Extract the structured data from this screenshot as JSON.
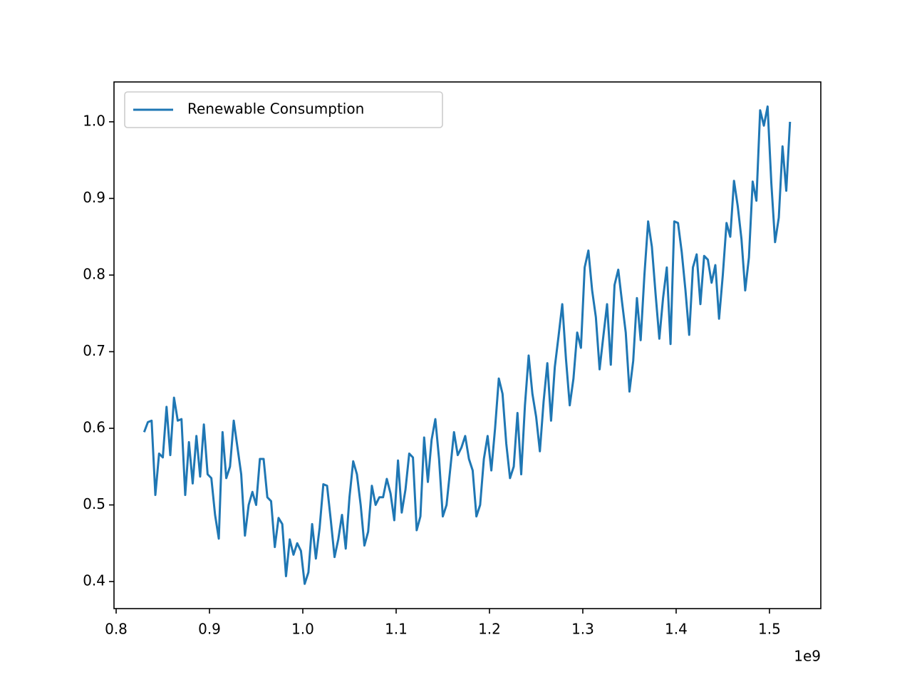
{
  "chart_data": {
    "type": "line",
    "x_offset_label": "1e9",
    "x": [
      0.83,
      0.834,
      0.838,
      0.842,
      0.846,
      0.85,
      0.854,
      0.858,
      0.862,
      0.866,
      0.87,
      0.874,
      0.878,
      0.882,
      0.886,
      0.89,
      0.894,
      0.898,
      0.902,
      0.906,
      0.91,
      0.914,
      0.918,
      0.922,
      0.926,
      0.93,
      0.934,
      0.938,
      0.942,
      0.946,
      0.95,
      0.954,
      0.958,
      0.962,
      0.966,
      0.97,
      0.974,
      0.978,
      0.982,
      0.986,
      0.99,
      0.994,
      0.998,
      1.002,
      1.006,
      1.01,
      1.014,
      1.018,
      1.022,
      1.026,
      1.03,
      1.034,
      1.038,
      1.042,
      1.046,
      1.05,
      1.054,
      1.058,
      1.062,
      1.066,
      1.07,
      1.074,
      1.078,
      1.082,
      1.086,
      1.09,
      1.094,
      1.098,
      1.102,
      1.106,
      1.11,
      1.114,
      1.118,
      1.122,
      1.126,
      1.13,
      1.134,
      1.138,
      1.142,
      1.146,
      1.15,
      1.154,
      1.158,
      1.162,
      1.166,
      1.17,
      1.174,
      1.178,
      1.182,
      1.186,
      1.19,
      1.194,
      1.198,
      1.202,
      1.206,
      1.21,
      1.214,
      1.218,
      1.222,
      1.226,
      1.23,
      1.234,
      1.238,
      1.242,
      1.246,
      1.25,
      1.254,
      1.258,
      1.262,
      1.266,
      1.27,
      1.274,
      1.278,
      1.282,
      1.286,
      1.29,
      1.294,
      1.298,
      1.302,
      1.306,
      1.31,
      1.314,
      1.318,
      1.322,
      1.326,
      1.33,
      1.334,
      1.338,
      1.342,
      1.346,
      1.35,
      1.354,
      1.358,
      1.362,
      1.366,
      1.37,
      1.374,
      1.378,
      1.382,
      1.386,
      1.39,
      1.394,
      1.398,
      1.402,
      1.406,
      1.41,
      1.414,
      1.418,
      1.422,
      1.426,
      1.43,
      1.434,
      1.438,
      1.442,
      1.446,
      1.45,
      1.454,
      1.458,
      1.462,
      1.466,
      1.47,
      1.474,
      1.478,
      1.482,
      1.486,
      1.49,
      1.494,
      1.498,
      1.502,
      1.506,
      1.51,
      1.514,
      1.518,
      1.522
    ],
    "series": [
      {
        "name": "Renewable Consumption",
        "color": "#1f77b4",
        "values": [
          0.595,
          0.608,
          0.61,
          0.513,
          0.567,
          0.562,
          0.628,
          0.565,
          0.64,
          0.61,
          0.612,
          0.513,
          0.582,
          0.528,
          0.59,
          0.537,
          0.605,
          0.54,
          0.535,
          0.487,
          0.456,
          0.595,
          0.535,
          0.55,
          0.61,
          0.575,
          0.54,
          0.46,
          0.5,
          0.517,
          0.5,
          0.56,
          0.56,
          0.51,
          0.505,
          0.445,
          0.483,
          0.475,
          0.407,
          0.455,
          0.435,
          0.45,
          0.44,
          0.397,
          0.412,
          0.475,
          0.43,
          0.47,
          0.527,
          0.525,
          0.48,
          0.432,
          0.455,
          0.487,
          0.443,
          0.51,
          0.557,
          0.54,
          0.5,
          0.447,
          0.465,
          0.525,
          0.5,
          0.51,
          0.51,
          0.534,
          0.515,
          0.48,
          0.558,
          0.49,
          0.52,
          0.567,
          0.562,
          0.467,
          0.485,
          0.588,
          0.53,
          0.585,
          0.612,
          0.56,
          0.485,
          0.5,
          0.547,
          0.595,
          0.565,
          0.575,
          0.59,
          0.56,
          0.545,
          0.485,
          0.5,
          0.56,
          0.59,
          0.545,
          0.6,
          0.665,
          0.645,
          0.58,
          0.535,
          0.55,
          0.62,
          0.54,
          0.63,
          0.695,
          0.645,
          0.615,
          0.57,
          0.635,
          0.685,
          0.61,
          0.68,
          0.72,
          0.762,
          0.69,
          0.63,
          0.665,
          0.725,
          0.705,
          0.81,
          0.832,
          0.78,
          0.745,
          0.677,
          0.72,
          0.762,
          0.683,
          0.787,
          0.807,
          0.765,
          0.725,
          0.648,
          0.688,
          0.77,
          0.715,
          0.8,
          0.87,
          0.837,
          0.775,
          0.717,
          0.77,
          0.81,
          0.71,
          0.87,
          0.868,
          0.83,
          0.78,
          0.722,
          0.81,
          0.827,
          0.762,
          0.825,
          0.82,
          0.79,
          0.813,
          0.743,
          0.8,
          0.868,
          0.85,
          0.923,
          0.89,
          0.847,
          0.78,
          0.823,
          0.922,
          0.897,
          1.015,
          0.995,
          1.02,
          0.92,
          0.843,
          0.875,
          0.968,
          0.91,
          1.0
        ]
      }
    ],
    "xlim": [
      0.7977,
      1.555
    ],
    "ylim": [
      0.3647,
      1.052
    ],
    "xticks": [
      0.8,
      0.9,
      {
        "value": 1,
        "label": "1.0"
      },
      1.1,
      1.2,
      1.3,
      1.4,
      1.5
    ],
    "yticks": [
      0.4,
      0.5,
      0.6,
      0.7,
      0.8,
      0.9,
      {
        "value": 1,
        "label": "1.0"
      }
    ],
    "legend": "upper left",
    "grid": false
  }
}
